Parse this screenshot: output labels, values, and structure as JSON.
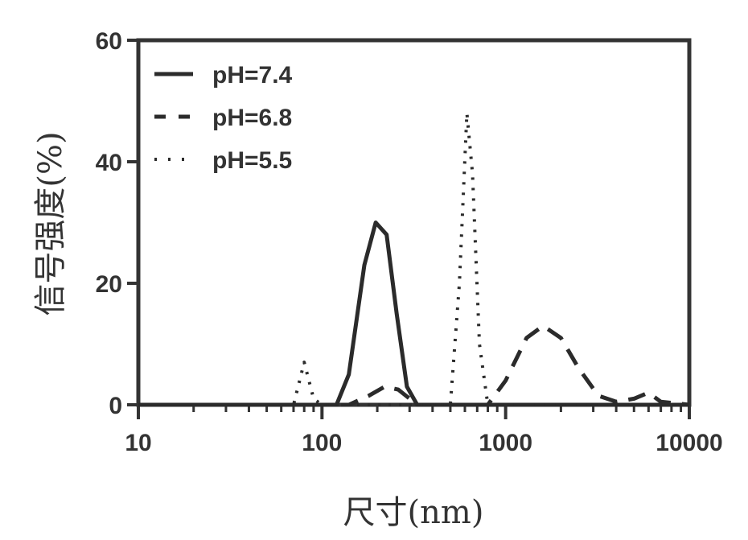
{
  "chart_data": {
    "type": "line",
    "xlabel": "尺寸(nm)",
    "ylabel": "信号强度(%)",
    "xscale": "log",
    "xlim": [
      10,
      10000
    ],
    "ylim": [
      0,
      60
    ],
    "xticks": [
      10,
      100,
      1000,
      10000
    ],
    "xtick_labels": [
      "10",
      "100",
      "1000",
      "10000"
    ],
    "yticks": [
      0,
      20,
      40,
      60
    ],
    "ytick_labels": [
      "0",
      "20",
      "40",
      "60"
    ],
    "grid": false,
    "legend_position": "top-left",
    "series": [
      {
        "name": "pH=7.4",
        "style": "solid",
        "x": [
          10,
          120,
          140,
          170,
          196,
          225,
          255,
          290,
          330,
          10000
        ],
        "y": [
          0,
          0,
          5,
          23,
          30,
          28,
          15,
          3,
          0,
          0
        ]
      },
      {
        "name": "pH=6.8",
        "style": "dashed",
        "x": [
          10,
          140,
          180,
          220,
          260,
          300,
          330,
          800,
          1000,
          1300,
          1600,
          2000,
          2500,
          3200,
          4000,
          5000,
          6000,
          7000,
          10000
        ],
        "y": [
          0,
          0,
          1.5,
          3,
          2.5,
          1,
          0,
          0,
          4,
          11,
          13,
          11,
          6,
          1.5,
          0.5,
          1,
          2,
          0.5,
          0
        ]
      },
      {
        "name": "pH=5.5",
        "style": "dotted",
        "x": [
          10,
          70,
          80,
          90,
          100,
          500,
          560,
          615,
          660,
          720,
          800,
          10000
        ],
        "y": [
          0,
          0,
          7,
          1,
          0,
          0,
          20,
          48,
          38,
          10,
          0,
          0
        ]
      }
    ]
  }
}
